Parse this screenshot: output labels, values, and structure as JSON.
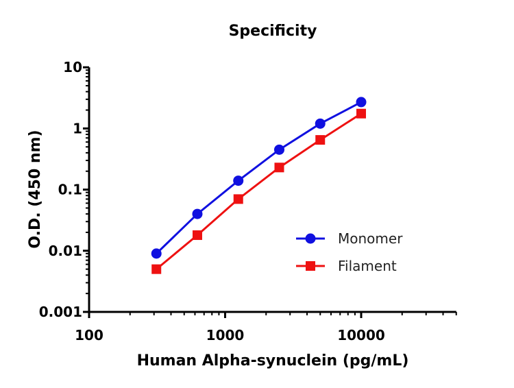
{
  "chart_data": {
    "type": "line",
    "title": "Specificity",
    "xlabel": "Human Alpha-synuclein (pg/mL)",
    "ylabel": "O.D. (450 nm)",
    "x_scale": "log",
    "y_scale": "log",
    "xlim": [
      100,
      50000
    ],
    "ylim": [
      0.001,
      10
    ],
    "x_ticks": [
      "100",
      "1000",
      "10000"
    ],
    "y_ticks": [
      "0.001",
      "0.01",
      "0.1",
      "1",
      "10"
    ],
    "grid": false,
    "legend_position": "bottom-right",
    "x": [
      312.5,
      625,
      1250,
      2500,
      5000,
      10000
    ],
    "series": [
      {
        "name": "Monomer",
        "color": "#1010e0",
        "marker": "circle",
        "values": [
          0.009,
          0.04,
          0.14,
          0.45,
          1.2,
          2.7
        ]
      },
      {
        "name": "Filament",
        "color": "#ee1111",
        "marker": "square",
        "values": [
          0.005,
          0.018,
          0.07,
          0.23,
          0.65,
          1.75
        ]
      }
    ]
  }
}
